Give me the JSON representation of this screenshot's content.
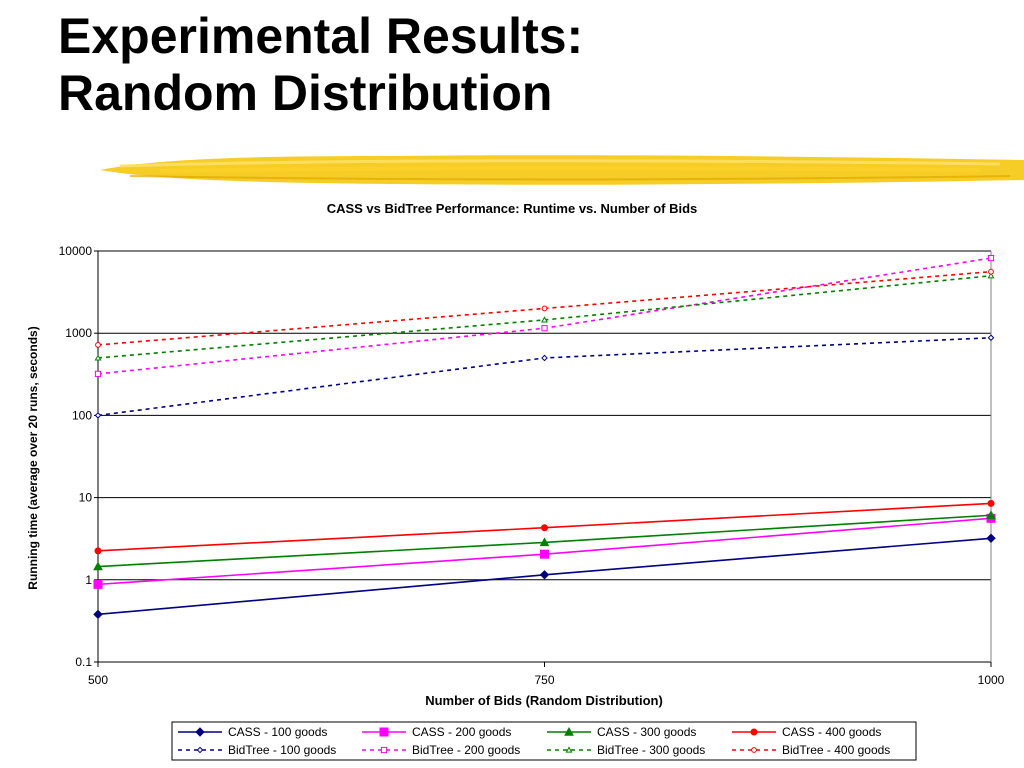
{
  "slide": {
    "title_line1": "Experimental Results:",
    "title_line2": "Random Distribution",
    "accent_color": "#f5c400"
  },
  "chart_data": {
    "type": "line",
    "title": "CASS vs BidTree Performance:  Runtime vs. Number of Bids",
    "xlabel": "Number of Bids (Random Distribution)",
    "ylabel": "Running time (average over 20 runs, seconds)",
    "x": [
      500,
      750,
      1000
    ],
    "x_ticks": [
      "500",
      "750",
      "1000"
    ],
    "y_scale": "log",
    "ylim": [
      0.1,
      10000
    ],
    "y_ticks": [
      "0.1",
      "1",
      "10",
      "100",
      "1000",
      "10000"
    ],
    "grid": "horizontal major gridlines",
    "legend_position": "bottom",
    "series": [
      {
        "name": "CASS - 100 goods",
        "values": [
          0.38,
          1.15,
          3.2
        ],
        "color": "#000080",
        "dash": "solid",
        "marker": "diamond-filled"
      },
      {
        "name": "CASS - 200 goods",
        "values": [
          0.88,
          2.05,
          5.6
        ],
        "color": "#ff00ff",
        "dash": "solid",
        "marker": "square-filled"
      },
      {
        "name": "CASS - 300 goods",
        "values": [
          1.45,
          2.85,
          6.1
        ],
        "color": "#008000",
        "dash": "solid",
        "marker": "triangle-filled"
      },
      {
        "name": "CASS - 400 goods",
        "values": [
          2.25,
          4.3,
          8.5
        ],
        "color": "#ff0000",
        "dash": "solid",
        "marker": "circle-filled"
      },
      {
        "name": "BidTree - 100 goods",
        "values": [
          100,
          500,
          880
        ],
        "color": "#000080",
        "dash": "dashed",
        "marker": "diamond-open"
      },
      {
        "name": "BidTree - 200 goods",
        "values": [
          320,
          1150,
          8200
        ],
        "color": "#ff00ff",
        "dash": "dashed",
        "marker": "square-open"
      },
      {
        "name": "BidTree - 300 goods",
        "values": [
          500,
          1450,
          5000
        ],
        "color": "#008000",
        "dash": "dashed",
        "marker": "triangle-open"
      },
      {
        "name": "BidTree - 400 goods",
        "values": [
          720,
          2000,
          5600
        ],
        "color": "#ff0000",
        "dash": "dashed",
        "marker": "circle-open"
      }
    ]
  }
}
